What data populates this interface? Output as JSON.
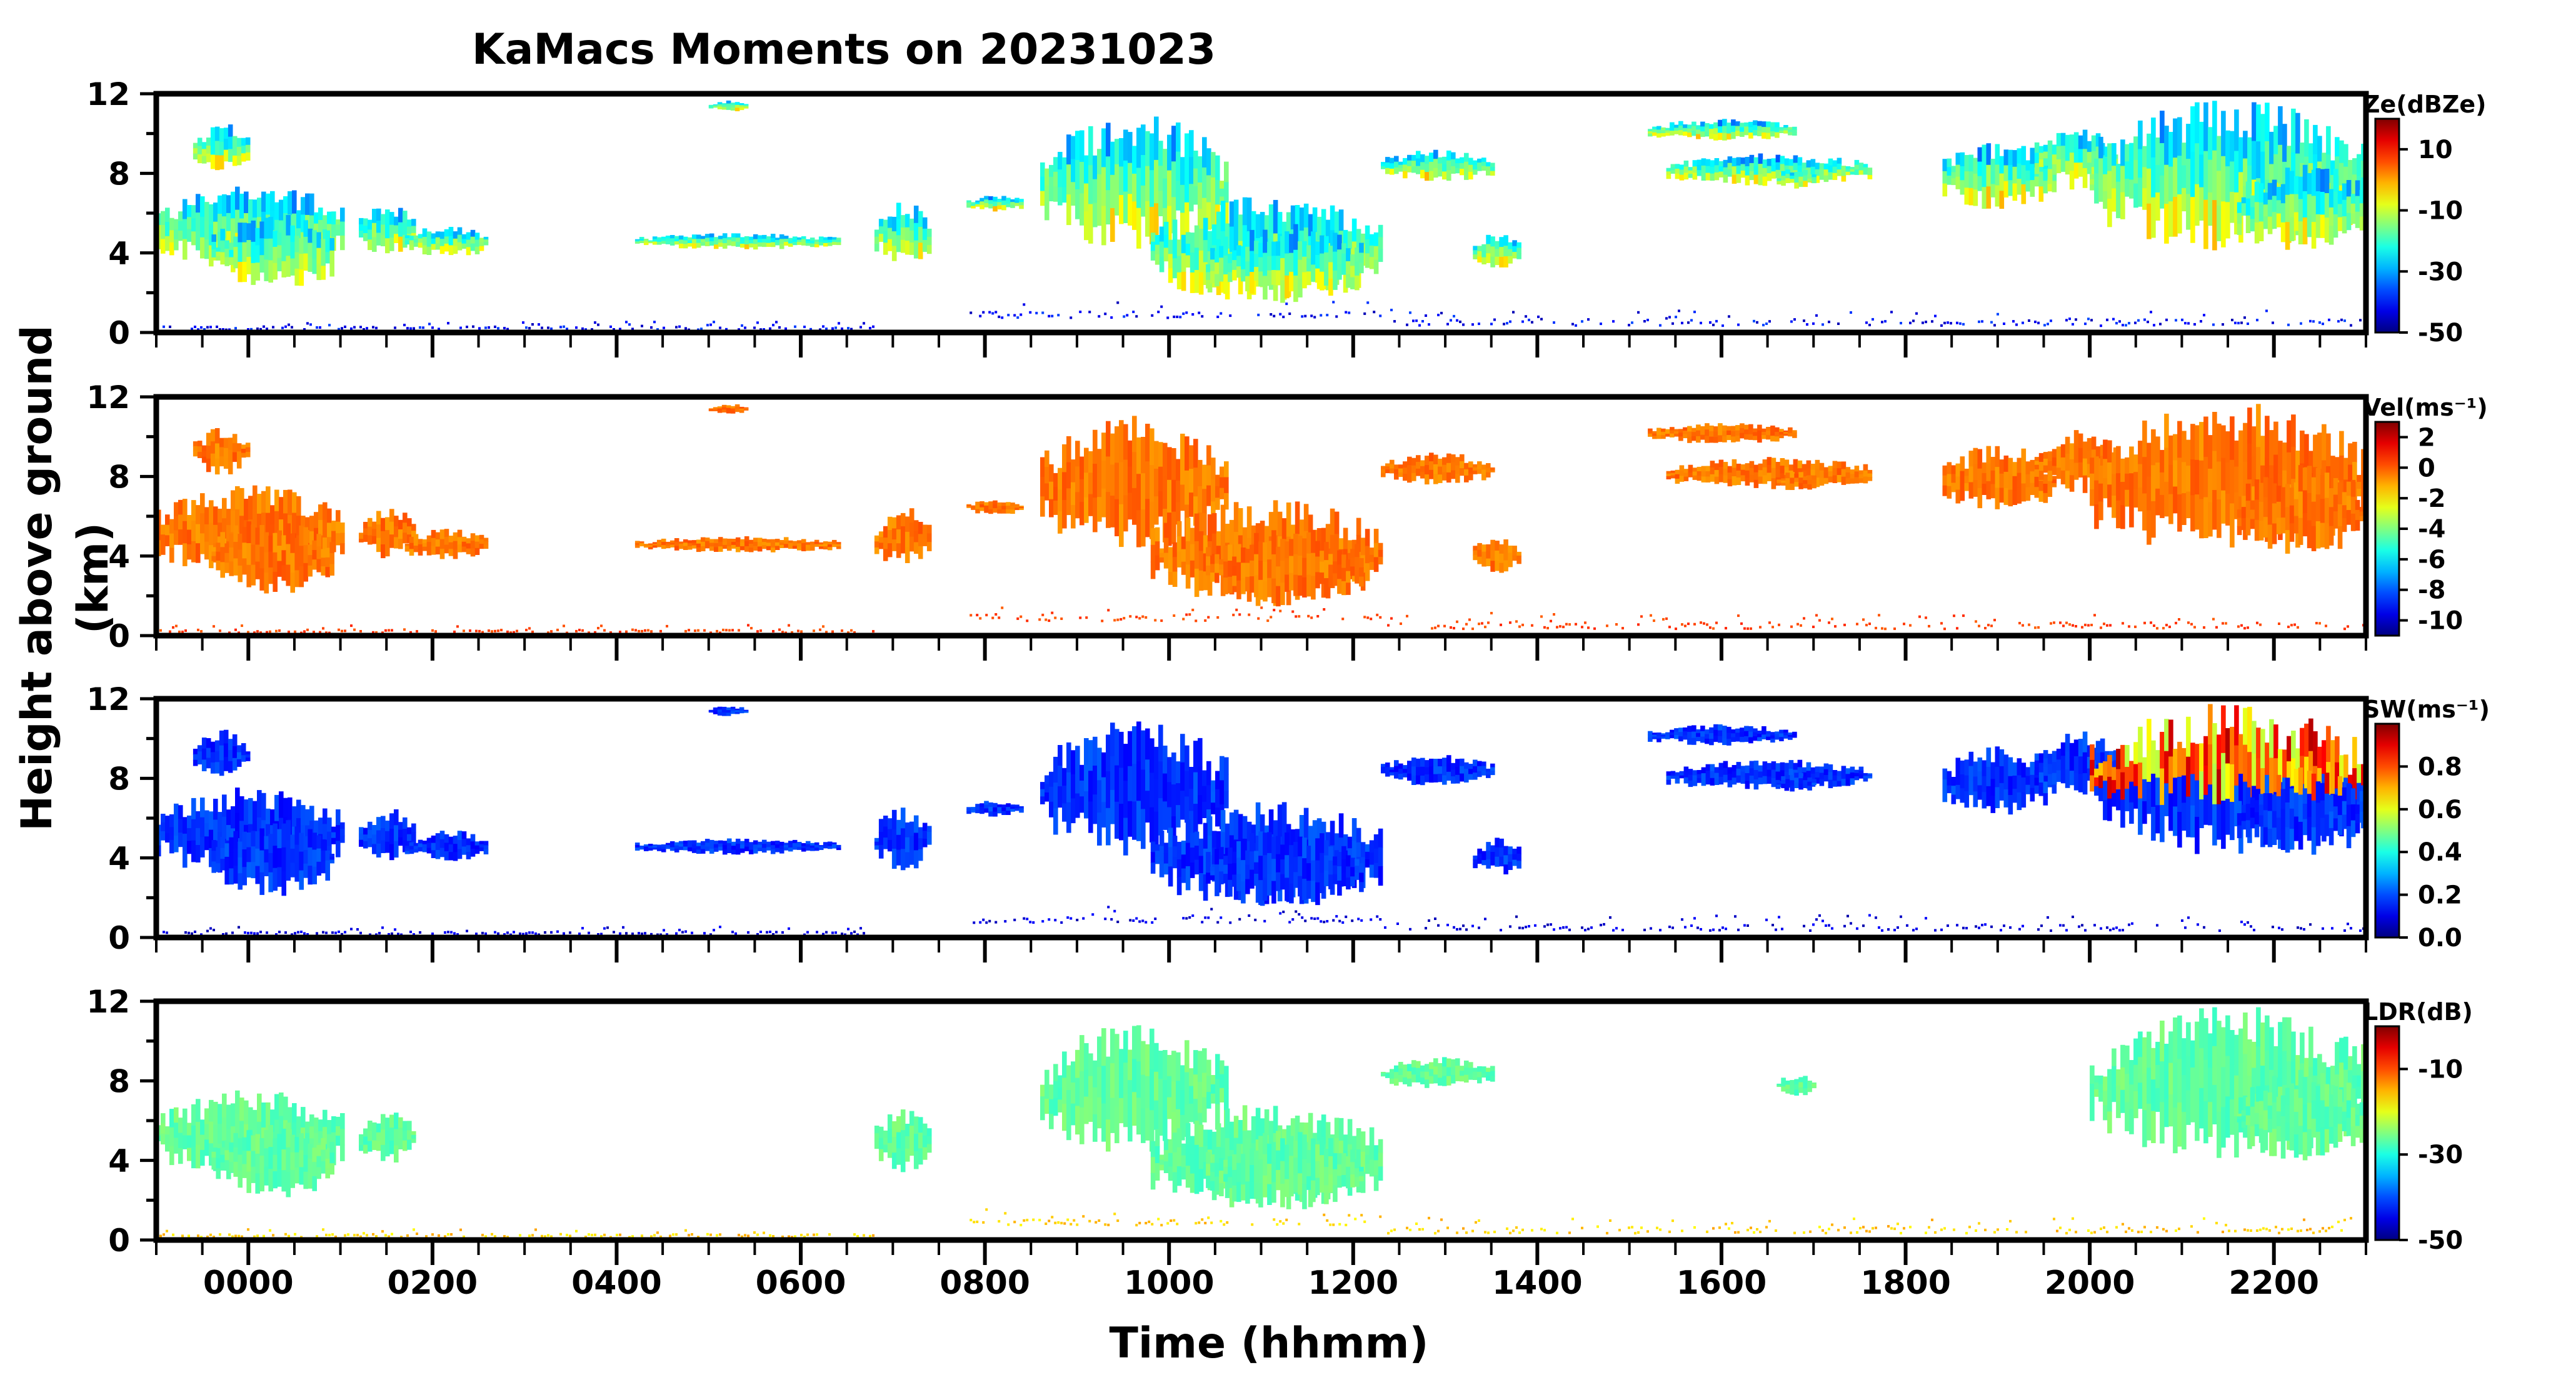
{
  "figure": {
    "title": "KaMacs Moments on 20231023",
    "ylabel": "Height above ground (km)",
    "xlabel": "Time (hhmm)"
  },
  "chart_data": {
    "type": "heatmap",
    "x_tick_labels": [
      "0000",
      "0200",
      "0400",
      "0600",
      "0800",
      "1000",
      "1200",
      "1400",
      "1600",
      "1800",
      "2000",
      "2200"
    ],
    "x_tick_hours": [
      0,
      2,
      4,
      6,
      8,
      10,
      12,
      14,
      16,
      18,
      20,
      22
    ],
    "xlim_hours": [
      -1,
      23
    ],
    "ylim_km": [
      0,
      12
    ],
    "y_ticks": [
      0,
      4,
      8,
      12
    ],
    "panels": [
      {
        "name": "reflectivity",
        "colorbar_label": "Ze(dBZe)",
        "vmin": -50,
        "vmax": 20,
        "cbar_ticks": [
          10,
          -10,
          -30,
          -50
        ],
        "palette": "jet",
        "color_mode": "height",
        "base": 0.28,
        "spread": 0.22
      },
      {
        "name": "velocity",
        "colorbar_label": "Vel(ms⁻¹)",
        "vmin": -11,
        "vmax": 3,
        "cbar_ticks": [
          2,
          0,
          -2,
          -4,
          -6,
          -8,
          -10
        ],
        "palette": "jet",
        "color_mode": "constant",
        "base": 0.76,
        "spread": 0.04
      },
      {
        "name": "spectrum-width",
        "colorbar_label": "SW(ms⁻¹)",
        "vmin": 0.0,
        "vmax": 1.0,
        "cbar_ticks": [
          0.8,
          0.6,
          0.4,
          0.2,
          0.0
        ],
        "cbar_tick_text": [
          "0.8",
          "0.6",
          "0.4",
          "0.2",
          "0.0"
        ],
        "palette": "jet",
        "color_mode": "spectrum",
        "base": 0.12,
        "spread": 0.1
      },
      {
        "name": "ldr",
        "colorbar_label": "LDR(dB)",
        "vmin": -50,
        "vmax": 0,
        "cbar_ticks": [
          -10,
          -30,
          -50
        ],
        "palette": "jet",
        "color_mode": "constant",
        "base": 0.47,
        "spread": 0.04,
        "ldr_subset": true
      }
    ],
    "echo_regions": [
      {
        "t0": -1.0,
        "t1": 1.0,
        "h0": 3.6,
        "h1": 7.0,
        "ldr": true
      },
      {
        "t0": -0.4,
        "t1": 0.9,
        "h0": 2.6,
        "h1": 5.5,
        "ldr": true
      },
      {
        "t0": 1.2,
        "t1": 1.8,
        "h0": 4.2,
        "h1": 6.2,
        "ldr": true
      },
      {
        "t0": 1.7,
        "t1": 2.6,
        "h0": 4.0,
        "h1": 5.2,
        "ldr": false
      },
      {
        "t0": -0.6,
        "t1": 0.0,
        "h0": 8.4,
        "h1": 10.2,
        "ldr": false
      },
      {
        "t0": 4.2,
        "t1": 6.4,
        "h0": 4.3,
        "h1": 4.9,
        "ldr": false
      },
      {
        "t0": 6.8,
        "t1": 7.4,
        "h0": 3.8,
        "h1": 6.2,
        "ldr": true
      },
      {
        "t0": 7.8,
        "t1": 8.4,
        "h0": 6.2,
        "h1": 6.8,
        "ldr": false
      },
      {
        "t0": 5.0,
        "t1": 5.4,
        "h0": 11.2,
        "h1": 11.6,
        "ldr": false
      },
      {
        "t0": 8.6,
        "t1": 10.6,
        "h0": 5.0,
        "h1": 10.2,
        "ldr": true
      },
      {
        "t0": 9.8,
        "t1": 12.3,
        "h0": 2.2,
        "h1": 6.2,
        "ldr": true
      },
      {
        "t0": 10.4,
        "t1": 12.1,
        "h0": 2.0,
        "h1": 5.0,
        "ldr": true
      },
      {
        "t0": 12.3,
        "t1": 13.5,
        "h0": 7.8,
        "h1": 9.0,
        "ldr": true
      },
      {
        "t0": 13.3,
        "t1": 13.8,
        "h0": 3.4,
        "h1": 4.8,
        "ldr": false
      },
      {
        "t0": 15.4,
        "t1": 17.6,
        "h0": 7.6,
        "h1": 8.8,
        "ldr": false
      },
      {
        "t0": 15.2,
        "t1": 16.8,
        "h0": 9.8,
        "h1": 10.6,
        "ldr": false
      },
      {
        "t0": 16.6,
        "t1": 17.0,
        "h0": 7.4,
        "h1": 8.2,
        "ldr": true
      },
      {
        "t0": 18.4,
        "t1": 19.6,
        "h0": 6.6,
        "h1": 9.2,
        "ldr": false
      },
      {
        "t0": 19.4,
        "t1": 20.3,
        "h0": 7.6,
        "h1": 10.0,
        "ldr": false
      },
      {
        "t0": 20.0,
        "t1": 23.0,
        "h0": 5.0,
        "h1": 10.8,
        "ldr": true
      },
      {
        "t0": 21.6,
        "t1": 23.0,
        "h0": 4.6,
        "h1": 8.0,
        "ldr": true
      }
    ],
    "ground_clutter": [
      {
        "t0": -1.0,
        "t1": 6.8,
        "h0": 0.2,
        "h1": 0.6
      },
      {
        "t0": 7.8,
        "t1": 12.3,
        "h0": 0.8,
        "h1": 1.6
      },
      {
        "t0": 12.3,
        "t1": 23.0,
        "h0": 0.4,
        "h1": 1.2
      }
    ]
  }
}
